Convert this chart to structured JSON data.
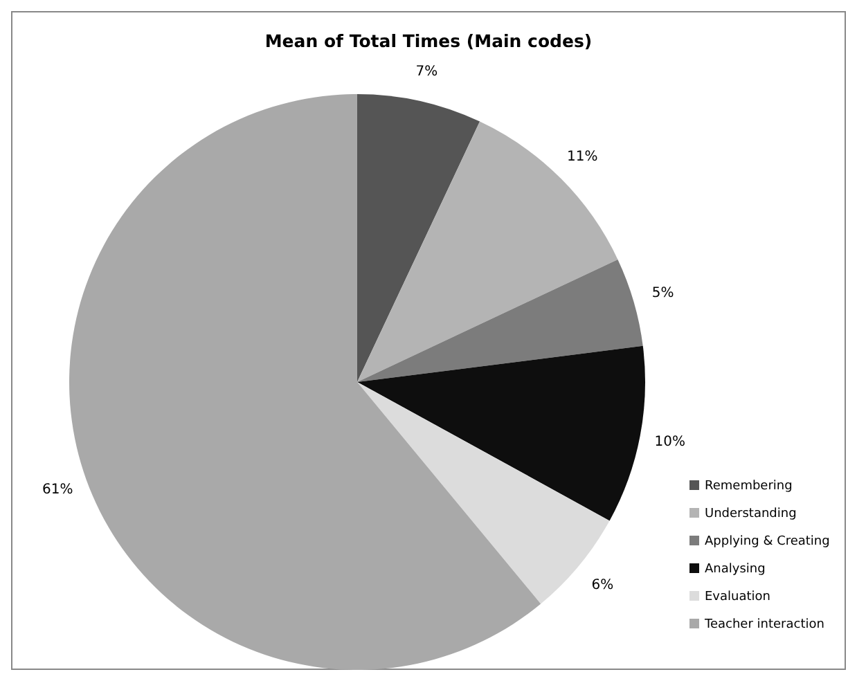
{
  "chart_data": {
    "type": "pie",
    "title": "Mean of Total Times (Main codes)",
    "categories": [
      "Remembering",
      "Understanding",
      "Applying & Creating",
      "Analysing",
      "Evaluation",
      "Teacher interaction"
    ],
    "values": [
      7,
      11,
      5,
      10,
      6,
      61
    ],
    "colors": [
      "#555555",
      "#b4b4b4",
      "#7c7c7c",
      "#0e0e0e",
      "#dcdcdc",
      "#a9a9a9"
    ],
    "value_labels": [
      "7%",
      "11%",
      "5%",
      "10%",
      "6%",
      "61%"
    ],
    "legend": "right"
  }
}
